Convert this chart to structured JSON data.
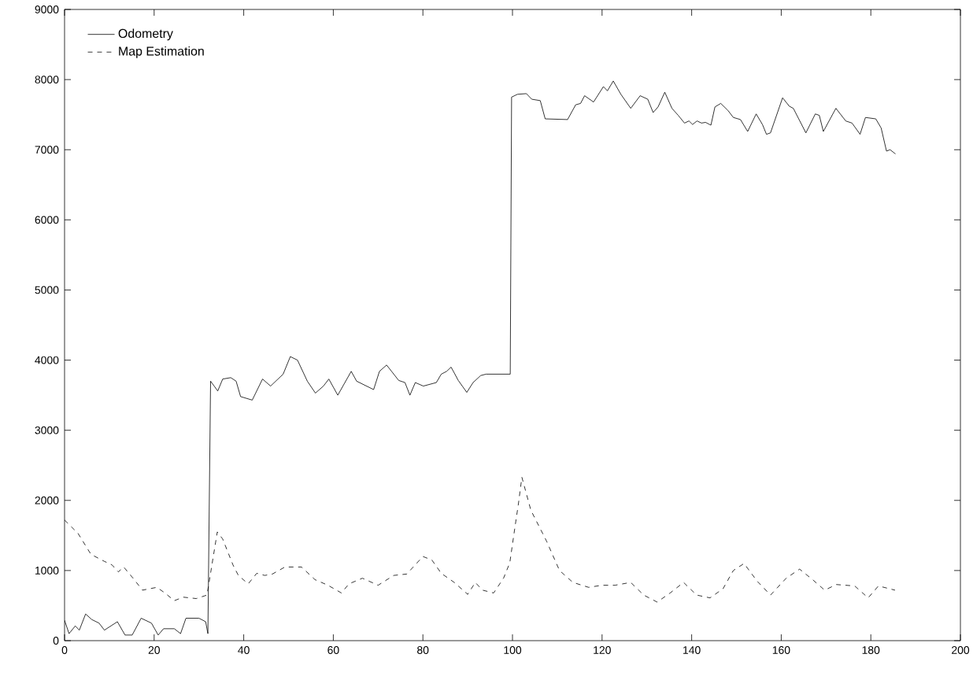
{
  "chart_data": {
    "type": "line",
    "xlim": [
      0,
      200
    ],
    "ylim": [
      0,
      9000
    ],
    "xticks": [
      0,
      20,
      40,
      60,
      80,
      100,
      120,
      140,
      160,
      180,
      200
    ],
    "yticks": [
      0,
      1000,
      2000,
      3000,
      4000,
      5000,
      6000,
      7000,
      8000,
      9000
    ],
    "grid": false,
    "legend": "top left",
    "marker": "none",
    "series": [
      {
        "name": "Odometry",
        "color": "#000000",
        "line_style": "solid",
        "x": [
          0,
          1,
          2.4,
          3.3,
          4.7,
          6.1,
          7.7,
          8.9,
          11.8,
          13.5,
          15.1,
          17.1,
          19.4,
          20.9,
          22.1,
          24.5,
          25.9,
          27.1,
          30,
          31.5,
          32,
          32.6,
          34.2,
          35.3,
          37.1,
          38.3,
          39.3,
          41.9,
          44.2,
          46,
          48.8,
          50.4,
          52,
          54.2,
          56,
          57.8,
          59,
          61,
          64,
          65.2,
          69,
          70.3,
          71.9,
          74.6,
          76,
          77.1,
          78.3,
          80.1,
          83,
          84.1,
          85.3,
          86.3,
          87.9,
          89.8,
          91.2,
          92.9,
          94.1,
          99.5,
          99.8,
          101.1,
          103.1,
          104.3,
          106.2,
          107.3,
          112.3,
          114.1,
          115.2,
          116.1,
          118.1,
          120.3,
          121.2,
          122.5,
          124.2,
          126.4,
          128.5,
          130.2,
          131.4,
          132.5,
          134,
          135.6,
          137,
          138.4,
          139.4,
          140.2,
          141.2,
          142.2,
          143.1,
          144.3,
          145.2,
          146.5,
          148.1,
          149.3,
          150.9,
          152.5,
          154.4,
          155.8,
          156.7,
          157.6,
          160.3,
          161.8,
          162.7,
          165.5,
          167.6,
          168.5,
          169.4,
          172.2,
          174.4,
          175.8,
          177.6,
          178.8,
          181.1,
          182.3,
          183.5,
          184.3,
          185.5
        ],
        "values": [
          290,
          100,
          210,
          150,
          380,
          300,
          250,
          150,
          270,
          80,
          80,
          320,
          250,
          80,
          170,
          170,
          100,
          320,
          320,
          270,
          100,
          3700,
          3560,
          3730,
          3750,
          3700,
          3480,
          3430,
          3730,
          3630,
          3800,
          4050,
          4000,
          3700,
          3530,
          3630,
          3730,
          3500,
          3840,
          3700,
          3580,
          3840,
          3930,
          3710,
          3680,
          3500,
          3680,
          3630,
          3680,
          3800,
          3840,
          3900,
          3710,
          3540,
          3680,
          3780,
          3800,
          3800,
          7750,
          7790,
          7800,
          7720,
          7700,
          7440,
          7430,
          7640,
          7660,
          7770,
          7680,
          7900,
          7840,
          7980,
          7790,
          7590,
          7770,
          7720,
          7530,
          7610,
          7820,
          7590,
          7490,
          7380,
          7410,
          7360,
          7410,
          7380,
          7390,
          7350,
          7610,
          7660,
          7560,
          7460,
          7430,
          7260,
          7510,
          7360,
          7220,
          7240,
          7740,
          7620,
          7590,
          7240,
          7510,
          7490,
          7260,
          7590,
          7410,
          7380,
          7220,
          7460,
          7440,
          7310,
          6980,
          7000,
          6940
        ]
      },
      {
        "name": "Map Estimation",
        "color": "#000000",
        "line_style": "dashed",
        "x": [
          0,
          3,
          5.9,
          8.9,
          10.6,
          12,
          13.2,
          15.3,
          17.4,
          20.6,
          22.4,
          24.5,
          26.5,
          29.4,
          31.8,
          34.1,
          35.3,
          37.6,
          38.8,
          41,
          42.9,
          44.7,
          46.4,
          49.2,
          52.9,
          55.9,
          58.8,
          61.8,
          63.5,
          66.5,
          70,
          73.5,
          76.4,
          80,
          82,
          84.1,
          87,
          90,
          91.7,
          93.3,
          95.8,
          98,
          99.4,
          100.6,
          101.3,
          102.1,
          104.1,
          107.6,
          110.5,
          113.5,
          117,
          120,
          122.9,
          126.4,
          129.3,
          132.3,
          135.2,
          138.2,
          141.1,
          144.1,
          147,
          149.3,
          151.7,
          154.6,
          157.6,
          161.1,
          164.1,
          167,
          169.7,
          172.3,
          176.4,
          179.4,
          181.7,
          185.4
        ],
        "values": [
          1720,
          1530,
          1230,
          1130,
          1080,
          980,
          1050,
          890,
          720,
          760,
          680,
          570,
          620,
          600,
          650,
          1550,
          1450,
          1080,
          930,
          810,
          960,
          930,
          950,
          1050,
          1050,
          870,
          790,
          680,
          810,
          890,
          790,
          930,
          950,
          1200,
          1150,
          960,
          830,
          660,
          830,
          720,
          680,
          890,
          1110,
          1640,
          1940,
          2330,
          1860,
          1420,
          1000,
          830,
          760,
          790,
          790,
          830,
          650,
          550,
          680,
          830,
          650,
          610,
          740,
          1000,
          1100,
          850,
          650,
          890,
          1020,
          870,
          720,
          800,
          780,
          610,
          780,
          720
        ]
      }
    ]
  }
}
